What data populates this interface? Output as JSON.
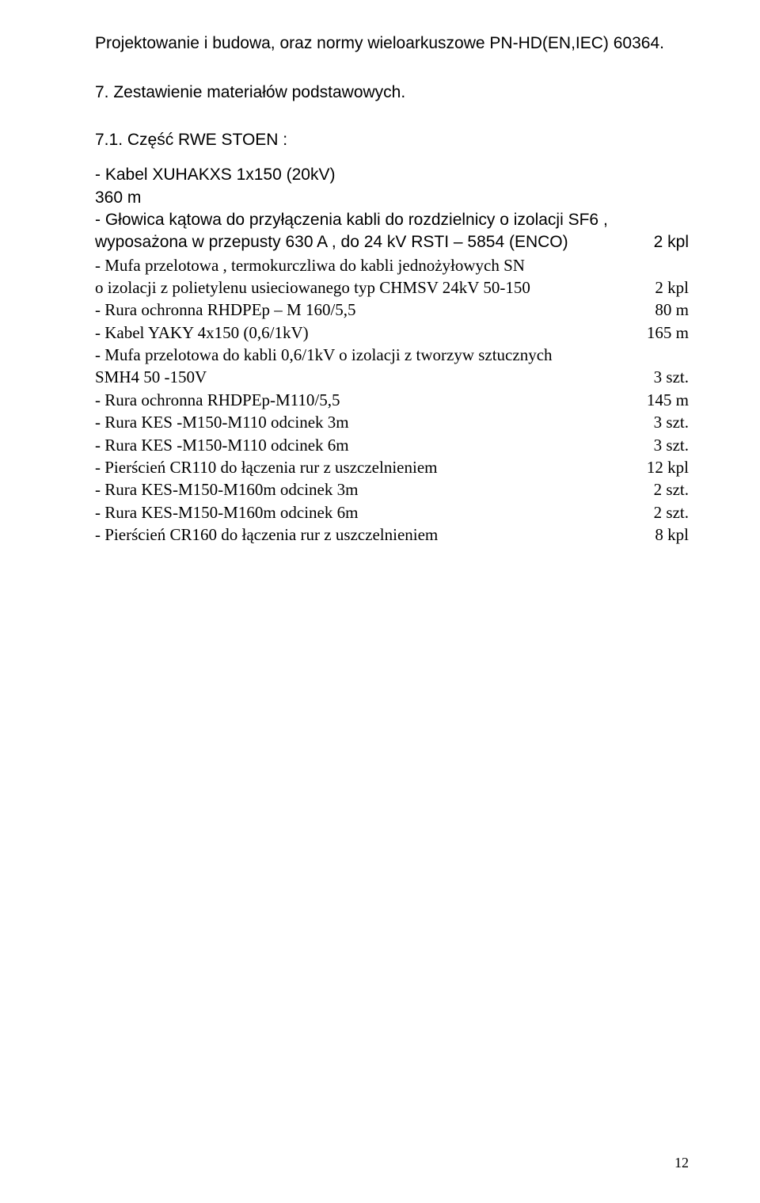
{
  "intro": "Projektowanie i budowa, oraz normy wieloarkuszowe PN-HD(EN,IEC) 60364.",
  "sectionHeading": "7. Zestawienie materiałów podstawowych.",
  "subsection": "7.1. Część RWE STOEN :",
  "lines": [
    {
      "left": "- Kabel XUHAKXS 1x150 (20kV)",
      "right": "",
      "font": "sans"
    },
    {
      "left": "360 m",
      "right": "",
      "font": "sans"
    },
    {
      "left": "- Głowica kątowa do przyłączenia kabli do rozdzielnicy o izolacji SF6 ,",
      "right": "",
      "font": "sans"
    },
    {
      "left": "wyposażona w przepusty 630 A , do 24 kV RSTI – 5854  (ENCO)",
      "right": "2 kpl",
      "font": "sans"
    },
    {
      "left": "- Mufa przelotowa , termokurczliwa do kabli jednożyłowych SN",
      "right": "",
      "font": "serif"
    },
    {
      "left": "o izolacji z polietylenu usieciowanego  typ CHMSV 24kV 50-150",
      "right": "2 kpl",
      "font": "serif"
    },
    {
      "left": "- Rura ochronna  RHDPEp – M 160/5,5",
      "right": "80 m",
      "font": "serif"
    },
    {
      "left": "- Kabel YAKY 4x150 (0,6/1kV)",
      "right": "165 m",
      "font": "serif"
    },
    {
      "left": "- Mufa przelotowa do kabli 0,6/1kV o izolacji z tworzyw sztucznych",
      "right": "",
      "font": "serif"
    },
    {
      "left": "SMH4 50 -150V",
      "right": "3 szt.",
      "font": "serif"
    },
    {
      "left": "- Rura ochronna RHDPEp-M110/5,5",
      "right": "145 m",
      "font": "serif"
    },
    {
      "left": "- Rura KES -M150-M110 odcinek 3m",
      "right": "3 szt.",
      "font": "serif"
    },
    {
      "left": "- Rura KES -M150-M110 odcinek 6m",
      "right": "3 szt.",
      "font": "serif"
    },
    {
      "left": "- Pierścień CR110 do łączenia rur z uszczelnieniem",
      "right": "12 kpl",
      "font": "serif"
    },
    {
      "left": "- Rura KES-M150-M160m odcinek 3m",
      "right": "2 szt.",
      "font": "serif"
    },
    {
      "left": "- Rura KES-M150-M160m odcinek 6m",
      "right": "2 szt.",
      "font": "serif"
    },
    {
      "left": "- Pierścień CR160 do łączenia rur z uszczelnieniem",
      "right": "8 kpl",
      "font": "serif"
    }
  ],
  "pageNumber": "12"
}
